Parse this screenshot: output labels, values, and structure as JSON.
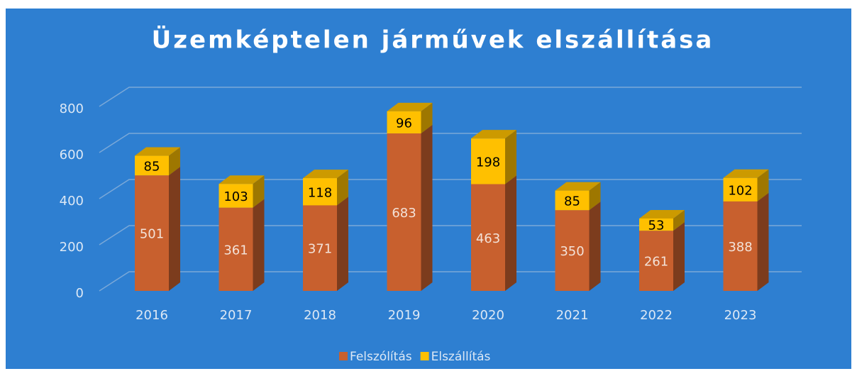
{
  "chart_data": {
    "type": "bar3d_stacked",
    "title": "Üzemképtelen járművek elszállítása",
    "categories": [
      "2016",
      "2017",
      "2018",
      "2019",
      "2020",
      "2021",
      "2022",
      "2023"
    ],
    "series": [
      {
        "name": "Felszólítás",
        "color": "#c8602e",
        "values": [
          501,
          361,
          371,
          683,
          463,
          350,
          261,
          388
        ]
      },
      {
        "name": "Elszállítás",
        "color": "#ffc000",
        "values": [
          85,
          103,
          118,
          96,
          198,
          85,
          53,
          102
        ]
      }
    ],
    "ylim": [
      0,
      800
    ],
    "yticks": [
      0,
      200,
      400,
      600,
      800
    ],
    "grid": true,
    "legend": "bottom"
  }
}
